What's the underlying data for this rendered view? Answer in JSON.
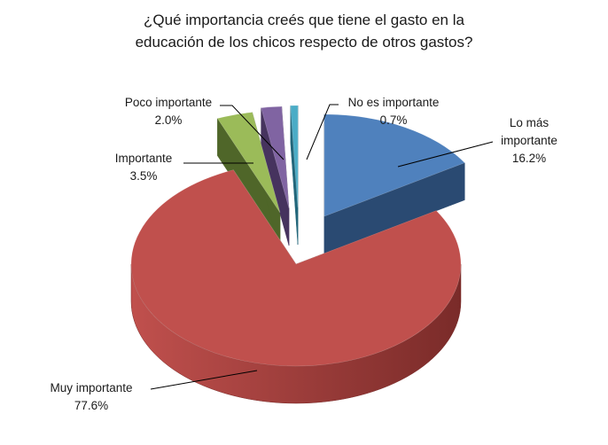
{
  "chart_data": {
    "type": "pie",
    "variant": "3d-exploded",
    "title_lines": [
      "¿Qué importancia creés que tiene el gasto en la",
      "educación de los chicos respecto de otros gastos?"
    ],
    "slices": [
      {
        "name": "Lo más importante",
        "label_lines": [
          "Lo más",
          "importante"
        ],
        "value_label": "16.2%",
        "value": 16.2,
        "color": "#4f81bd",
        "side_color": "#2a4a72"
      },
      {
        "name": "Muy importante",
        "label_lines": [
          "Muy importante"
        ],
        "value_label": "77.6%",
        "value": 77.6,
        "color": "#c0504d",
        "side_color": "#7a2b29"
      },
      {
        "name": "Importante",
        "label_lines": [
          "Importante"
        ],
        "value_label": "3.5%",
        "value": 3.5,
        "color": "#9bbb59",
        "side_color": "#4f6629"
      },
      {
        "name": "Poco importante",
        "label_lines": [
          "Poco importante"
        ],
        "value_label": "2.0%",
        "value": 2.0,
        "color": "#8064a2",
        "side_color": "#46335e"
      },
      {
        "name": "No es importante",
        "label_lines": [
          "No es importante"
        ],
        "value_label": "0.7%",
        "value": 0.7,
        "color": "#4bacc6",
        "side_color": "#22667a"
      }
    ]
  }
}
